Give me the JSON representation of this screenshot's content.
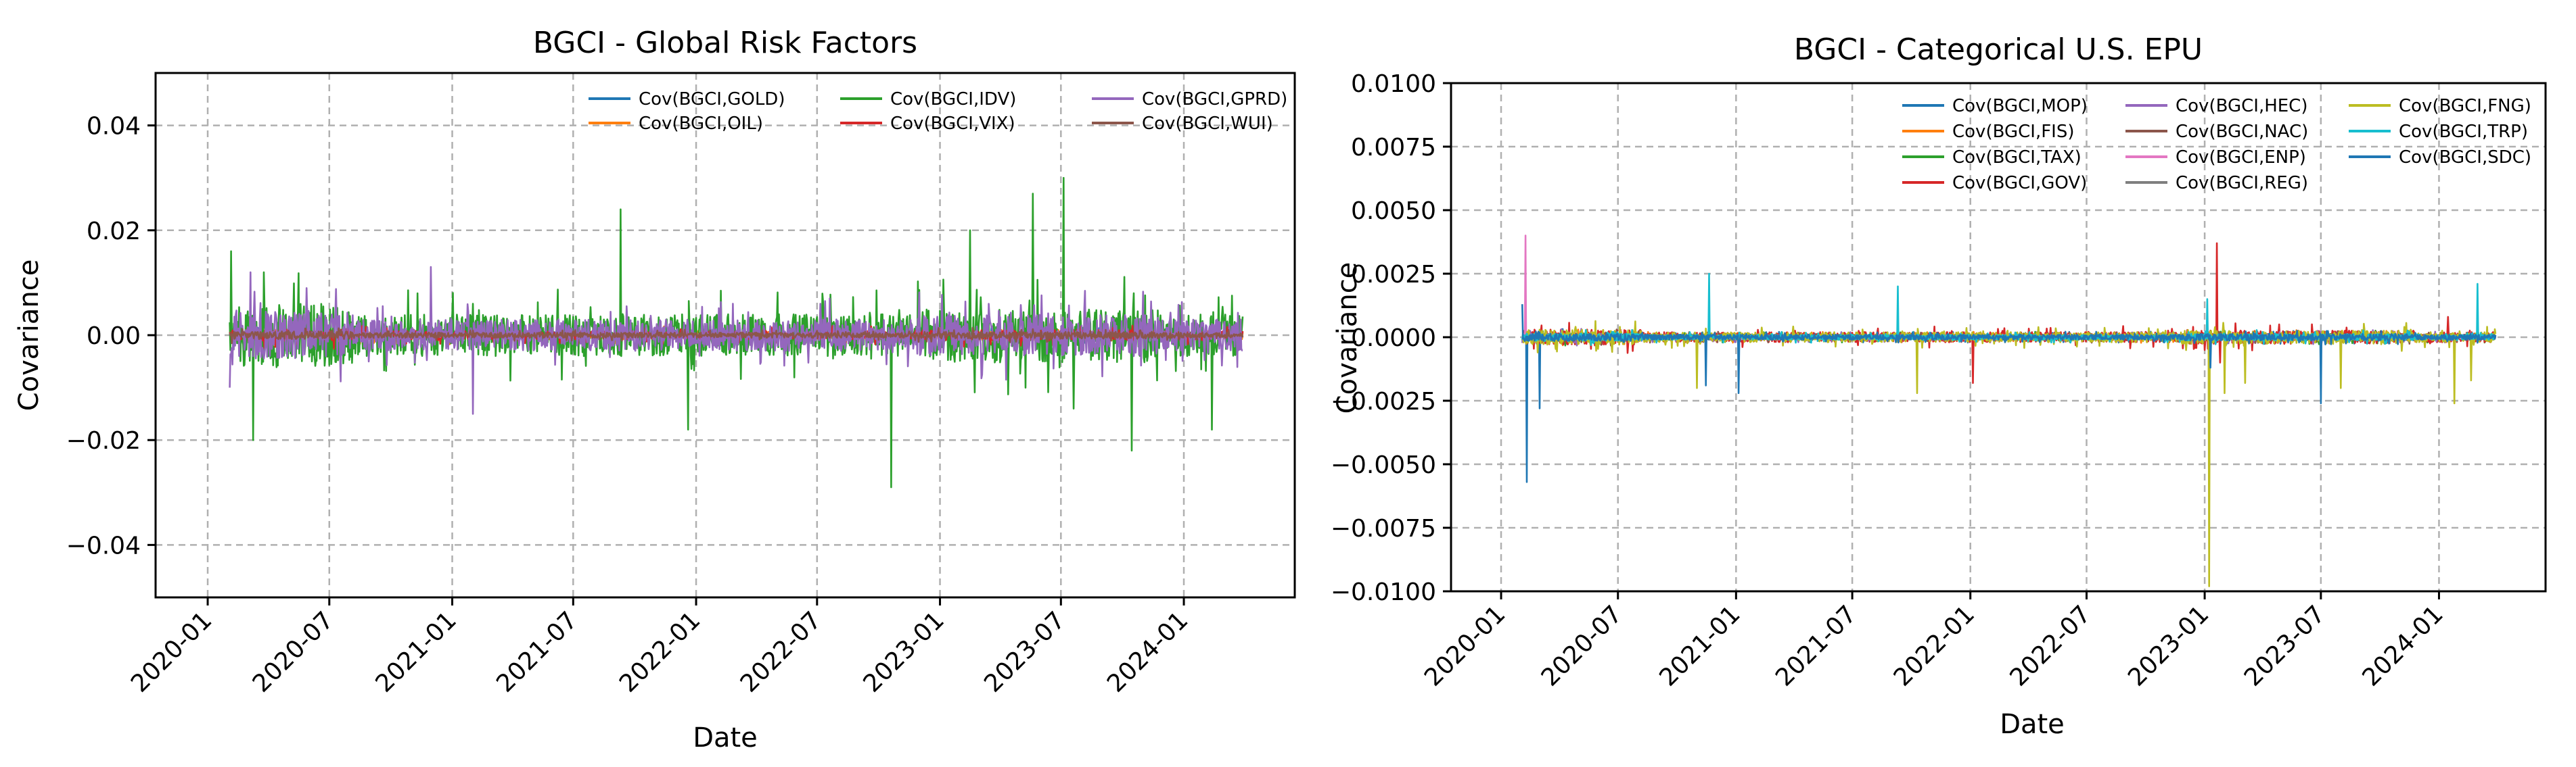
{
  "panels": [
    {
      "title": "BGCI - Global Risk Factors",
      "xlabel": "Date",
      "ylabel": "Covariance",
      "xticks": [
        "2020-01",
        "2020-07",
        "2021-01",
        "2021-07",
        "2022-01",
        "2022-07",
        "2023-01",
        "2023-07",
        "2024-01"
      ],
      "yticks": [
        "0.04",
        "0.02",
        "0.00",
        "−0.02",
        "−0.04"
      ],
      "legend": [
        "Cov(BGCI,GOLD)",
        "Cov(BGCI,OIL)",
        "Cov(BGCI,IDV)",
        "Cov(BGCI,VIX)",
        "Cov(BGCI,GPRD)",
        "Cov(BGCI,WUI)"
      ]
    },
    {
      "title": "BGCI - Categorical U.S. EPU",
      "xlabel": "Date",
      "ylabel": "Covariance",
      "xticks": [
        "2020-01",
        "2020-07",
        "2021-01",
        "2021-07",
        "2022-01",
        "2022-07",
        "2023-01",
        "2023-07",
        "2024-01"
      ],
      "yticks": [
        "0.0100",
        "0.0075",
        "0.0050",
        "0.0025",
        "0.0000",
        "−0.0025",
        "−0.0050",
        "−0.0075",
        "−0.0100"
      ],
      "legend": [
        "Cov(BGCI,MOP)",
        "Cov(BGCI,FIS)",
        "Cov(BGCI,TAX)",
        "Cov(BGCI,GOV)",
        "Cov(BGCI,HEC)",
        "Cov(BGCI,NAC)",
        "Cov(BGCI,ENP)",
        "Cov(BGCI,REG)",
        "Cov(BGCI,FNG)",
        "Cov(BGCI,TRP)",
        "Cov(BGCI,SDC)"
      ]
    }
  ],
  "chart_data": [
    {
      "type": "line",
      "title": "BGCI - Global Risk Factors",
      "xlabel": "Date",
      "ylabel": "Covariance",
      "x_range": [
        "2020-02-03",
        "2024-03-29"
      ],
      "xlim": [
        "2019-10-15",
        "2024-06-15"
      ],
      "ylim": [
        -0.05,
        0.05
      ],
      "grid": true,
      "legend_position": "top-right",
      "series": [
        {
          "name": "Cov(BGCI,GOLD)",
          "color": "#1f77b4",
          "amplitude": 0.0006,
          "spikes": []
        },
        {
          "name": "Cov(BGCI,OIL)",
          "color": "#ff7f0e",
          "amplitude": 0.0008,
          "spikes": []
        },
        {
          "name": "Cov(BGCI,IDV)",
          "color": "#2ca02c",
          "amplitude": 0.004,
          "spikes": [
            [
              "2020-02-05",
              0.016
            ],
            [
              "2020-03-09",
              -0.02
            ],
            [
              "2020-03-25",
              0.012
            ],
            [
              "2021-09-10",
              0.024
            ],
            [
              "2021-12-20",
              -0.018
            ],
            [
              "2022-10-20",
              -0.029
            ],
            [
              "2023-02-15",
              0.02
            ],
            [
              "2023-05-20",
              0.027
            ],
            [
              "2023-07-05",
              0.03
            ],
            [
              "2023-07-20",
              -0.014
            ],
            [
              "2023-10-15",
              -0.022
            ],
            [
              "2024-02-12",
              -0.018
            ]
          ]
        },
        {
          "name": "Cov(BGCI,VIX)",
          "color": "#d62728",
          "amplitude": 0.0008,
          "spikes": []
        },
        {
          "name": "Cov(BGCI,GPRD)",
          "color": "#9467bd",
          "amplitude": 0.003,
          "spikes": [
            [
              "2020-02-02",
              -0.01
            ],
            [
              "2020-03-05",
              0.012
            ],
            [
              "2020-11-30",
              0.013
            ],
            [
              "2021-02-01",
              -0.015
            ],
            [
              "2022-07-20",
              0.007
            ],
            [
              "2022-02-25",
              0.006
            ]
          ]
        },
        {
          "name": "Cov(BGCI,WUI)",
          "color": "#8c564b",
          "amplitude": 0.0005,
          "spikes": []
        }
      ]
    },
    {
      "type": "line",
      "title": "BGCI - Categorical U.S. EPU",
      "xlabel": "Date",
      "ylabel": "Covariance",
      "x_range": [
        "2020-02-03",
        "2024-03-29"
      ],
      "xlim": [
        "2019-10-15",
        "2024-06-15"
      ],
      "ylim": [
        -0.01,
        0.01
      ],
      "grid": true,
      "legend_position": "top-right",
      "series": [
        {
          "name": "Cov(BGCI,MOP)",
          "color": "#1f77b4",
          "amplitude": 0.0001,
          "spikes": [
            [
              "2020-02-10",
              -0.0057
            ],
            [
              "2020-03-01",
              -0.0028
            ]
          ]
        },
        {
          "name": "Cov(BGCI,FIS)",
          "color": "#ff7f0e",
          "amplitude": 0.0001,
          "spikes": []
        },
        {
          "name": "Cov(BGCI,TAX)",
          "color": "#2ca02c",
          "amplitude": 0.0001,
          "spikes": []
        },
        {
          "name": "Cov(BGCI,GOV)",
          "color": "#d62728",
          "amplitude": 0.0002,
          "spikes": [
            [
              "2022-01-05",
              -0.0018
            ],
            [
              "2023-01-20",
              0.0037
            ],
            [
              "2023-01-25",
              -0.001
            ],
            [
              "2024-01-15",
              0.0008
            ]
          ]
        },
        {
          "name": "Cov(BGCI,HEC)",
          "color": "#9467bd",
          "amplitude": 0.0001,
          "spikes": []
        },
        {
          "name": "Cov(BGCI,NAC)",
          "color": "#8c564b",
          "amplitude": 0.0001,
          "spikes": []
        },
        {
          "name": "Cov(BGCI,ENP)",
          "color": "#e377c2",
          "amplitude": 5e-05,
          "spikes": [
            [
              "2020-02-08",
              0.004
            ]
          ]
        },
        {
          "name": "Cov(BGCI,REG)",
          "color": "#7f7f7f",
          "amplitude": 5e-05,
          "spikes": []
        },
        {
          "name": "Cov(BGCI,FNG)",
          "color": "#bcbd22",
          "amplitude": 0.0002,
          "spikes": [
            [
              "2020-11-01",
              -0.002
            ],
            [
              "2021-10-10",
              -0.0022
            ],
            [
              "2023-01-08",
              -0.0098
            ],
            [
              "2023-02-01",
              -0.0022
            ],
            [
              "2023-03-05",
              -0.0018
            ],
            [
              "2023-08-01",
              -0.002
            ],
            [
              "2024-01-25",
              -0.0026
            ],
            [
              "2024-02-20",
              -0.0017
            ]
          ]
        },
        {
          "name": "Cov(BGCI,TRP)",
          "color": "#17becf",
          "amplitude": 0.0001,
          "spikes": [
            [
              "2020-11-20",
              0.0025
            ],
            [
              "2021-09-10",
              0.002
            ],
            [
              "2023-01-05",
              0.0015
            ],
            [
              "2024-03-01",
              0.0021
            ]
          ]
        },
        {
          "name": "Cov(BGCI,SDC)",
          "color": "#1f77b4",
          "amplitude": 0.0001,
          "spikes": [
            [
              "2020-02-02",
              0.0013
            ],
            [
              "2020-11-15",
              -0.0019
            ],
            [
              "2021-01-05",
              -0.0022
            ],
            [
              "2023-01-10",
              -0.0012
            ],
            [
              "2023-07-01",
              -0.0026
            ]
          ]
        }
      ]
    }
  ]
}
